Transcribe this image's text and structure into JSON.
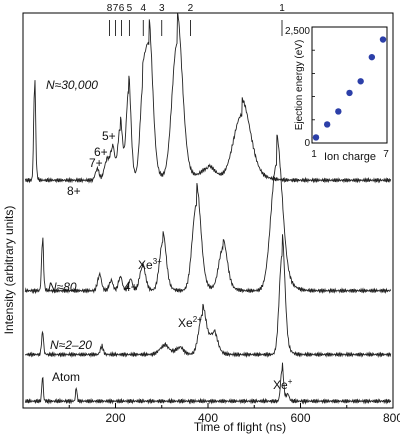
{
  "chart_data": [
    {
      "type": "line",
      "xlabel": "Time of flight (ns)",
      "ylabel": "Intensity (arbitrary units)",
      "xlim": [
        0,
        800
      ],
      "x_ticks": [
        200,
        400,
        600,
        800
      ],
      "top_scale_marks": [
        "8",
        "7",
        "6",
        "5",
        "4",
        "3",
        "2",
        "1"
      ],
      "top_scale_times": [
        187,
        200,
        213,
        230,
        260,
        300,
        362,
        560
      ],
      "series": [
        {
          "name": "N≈30,000",
          "label": "N≈30,000",
          "offset": 5.2,
          "peaks": [
            {
              "t": 25,
              "h": 2.2,
              "w": 2
            },
            {
              "t": 160,
              "h": 0.25,
              "w": 4
            },
            {
              "t": 180,
              "h": 0.42,
              "w": 5
            },
            {
              "t": 193,
              "h": 0.7,
              "w": 5
            },
            {
              "t": 210,
              "h": 1.2,
              "w": 5
            },
            {
              "t": 228,
              "h": 2.05,
              "w": 5
            },
            {
              "t": 258,
              "h": 1.6,
              "w": 6
            },
            {
              "t": 272,
              "h": 3.0,
              "w": 8
            },
            {
              "t": 333,
              "h": 3.25,
              "w": 11
            },
            {
              "t": 400,
              "h": 0.28,
              "w": 15
            },
            {
              "t": 473,
              "h": 1.55,
              "w": 18
            }
          ],
          "base": 0.08,
          "annotations": [
            "8+",
            "7+",
            "6+",
            "5+"
          ]
        },
        {
          "name": "N≈80",
          "label": "N≈80",
          "offset": 2.6,
          "peaks": [
            {
              "t": 42,
              "h": 1.15,
              "w": 2
            },
            {
              "t": 165,
              "h": 0.35,
              "w": 4
            },
            {
              "t": 190,
              "h": 0.22,
              "w": 4
            },
            {
              "t": 210,
              "h": 0.3,
              "w": 4
            },
            {
              "t": 232,
              "h": 0.25,
              "w": 4
            },
            {
              "t": 258,
              "h": 0.55,
              "w": 6
            },
            {
              "t": 302,
              "h": 1.15,
              "w": 7
            },
            {
              "t": 375,
              "h": 2.05,
              "w": 9
            },
            {
              "t": 432,
              "h": 1.0,
              "w": 9
            },
            {
              "t": 548,
              "h": 3.0,
              "w": 12
            }
          ],
          "base": 0.05,
          "annotations": [
            "4+",
            "Xe3+"
          ]
        },
        {
          "name": "N≈2–20",
          "label": "N≈2–20",
          "offset": 1.1,
          "peaks": [
            {
              "t": 42,
              "h": 0.5,
              "w": 2
            },
            {
              "t": 170,
              "h": 0.18,
              "w": 3
            },
            {
              "t": 305,
              "h": 0.2,
              "w": 10
            },
            {
              "t": 338,
              "h": 0.15,
              "w": 8
            },
            {
              "t": 388,
              "h": 0.95,
              "w": 8
            },
            {
              "t": 412,
              "h": 0.45,
              "w": 8
            },
            {
              "t": 560,
              "h": 2.35,
              "w": 6
            }
          ],
          "base": 0.03,
          "annotations": [
            "Xe2+"
          ]
        },
        {
          "name": "Atom",
          "label": "Atom",
          "offset": 0.0,
          "peaks": [
            {
              "t": 42,
              "h": 0.55,
              "w": 1.5
            },
            {
              "t": 115,
              "h": 0.3,
              "w": 1.5
            },
            {
              "t": 560,
              "h": 0.75,
              "w": 3
            },
            {
              "t": 572,
              "h": 0.15,
              "w": 3
            }
          ],
          "base": 0.02,
          "annotations": [
            "Xe+"
          ]
        }
      ],
      "labels": {
        "8+": "8+",
        "7+": "7+",
        "6+": "6+",
        "5+": "5+",
        "4+": "4+",
        "Xe3+": "Xe",
        "Xe3+_sup": "3+",
        "Xe2+": "Xe",
        "Xe2+_sup": "2+",
        "Xe+": "Xe",
        "Xe+_sup": "+"
      }
    },
    {
      "type": "scatter",
      "xlabel": "Ion charge",
      "ylabel": "Ejection energy (eV)",
      "xlim": [
        1,
        7
      ],
      "ylim": [
        0,
        2500
      ],
      "x_ticks": [
        "1",
        "7"
      ],
      "y_ticks": [
        "0",
        "2,500"
      ],
      "points_color": "#2c3fa8",
      "x": [
        1,
        2,
        3,
        4,
        5,
        6,
        7
      ],
      "y": [
        120,
        400,
        680,
        1080,
        1330,
        1850,
        2230
      ]
    }
  ]
}
